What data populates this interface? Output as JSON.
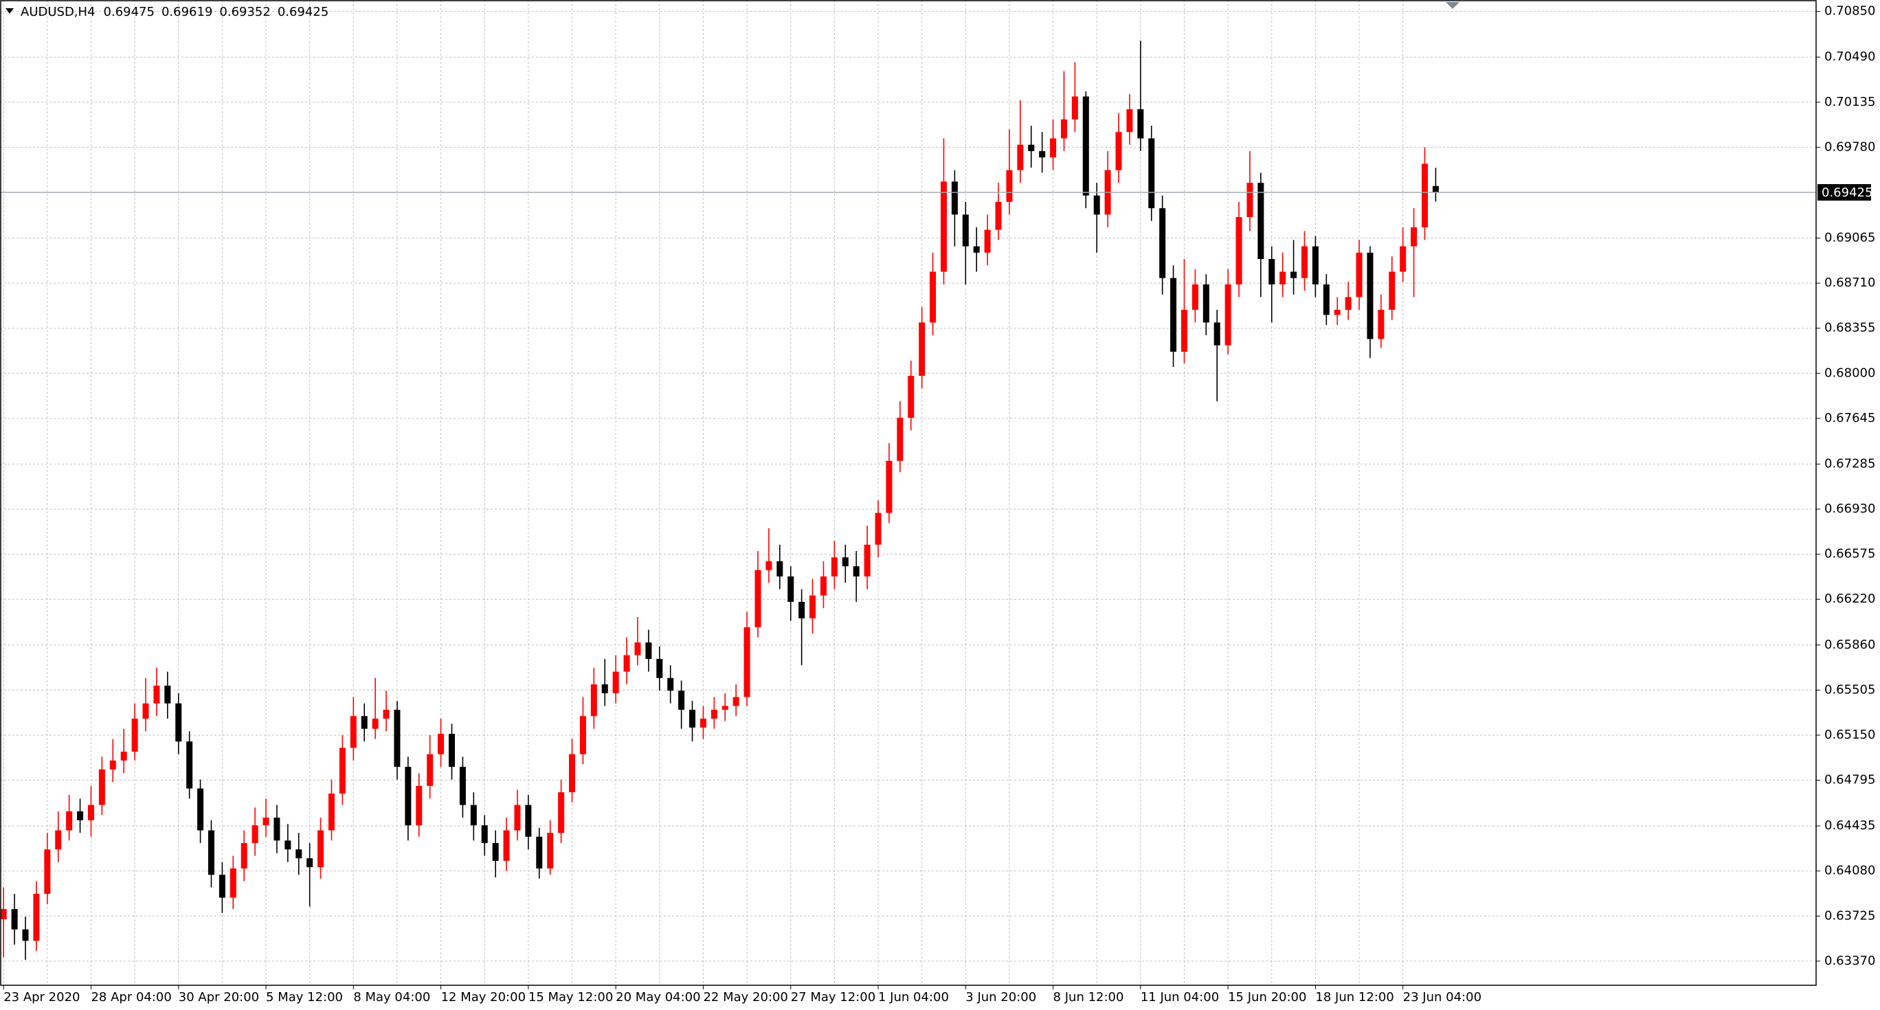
{
  "chart_data": {
    "type": "candlestick",
    "header": {
      "symbol": "AUDUSD,H4",
      "open": 0.69475,
      "high": 0.69619,
      "low": 0.69352,
      "close": 0.69425
    },
    "up_color": "#ff0000",
    "down_color": "#000000",
    "grid": true,
    "price_line": 0.69425,
    "ylim": [
      0.6318,
      0.7094
    ],
    "yticks": [
      {
        "value": 0.7085,
        "label": "0.70850"
      },
      {
        "value": 0.7049,
        "label": "0.70490"
      },
      0.70135,
      {
        "value": 0.6978,
        "label": "0.69780"
      },
      0.69065,
      {
        "value": 0.6871,
        "label": "0.68710"
      },
      0.68355,
      {
        "value": 0.68,
        "label": "0.68000"
      },
      0.67645,
      0.67285,
      {
        "value": 0.6693,
        "label": "0.66930"
      },
      0.66575,
      {
        "value": 0.6622,
        "label": "0.66220"
      },
      {
        "value": 0.6586,
        "label": "0.65860"
      },
      0.65505,
      {
        "value": 0.6515,
        "label": "0.65150"
      },
      0.64795,
      0.64435,
      {
        "value": 0.6408,
        "label": "0.64080"
      },
      0.63725,
      {
        "value": 0.6337,
        "label": "0.63370"
      }
    ],
    "categories": [
      "23 Apr 2020",
      null,
      null,
      null,
      null,
      null,
      null,
      null,
      "28 Apr 04:00",
      null,
      null,
      null,
      null,
      null,
      null,
      null,
      "30 Apr 20:00",
      null,
      null,
      null,
      null,
      null,
      null,
      null,
      "5 May 12:00",
      null,
      null,
      null,
      null,
      null,
      null,
      null,
      "8 May 04:00",
      null,
      null,
      null,
      null,
      null,
      null,
      null,
      "12 May 20:00",
      null,
      null,
      null,
      null,
      null,
      null,
      null,
      "15 May 12:00",
      null,
      null,
      null,
      null,
      null,
      null,
      null,
      "20 May 04:00",
      null,
      null,
      null,
      null,
      null,
      null,
      null,
      "22 May 20:00",
      null,
      null,
      null,
      null,
      null,
      null,
      null,
      "27 May 12:00",
      null,
      null,
      null,
      null,
      null,
      null,
      null,
      "1 Jun 04:00",
      null,
      null,
      null,
      null,
      null,
      null,
      null,
      "3 Jun 20:00",
      null,
      null,
      null,
      null,
      null,
      null,
      null,
      "8 Jun 12:00",
      null,
      null,
      null,
      null,
      null,
      null,
      null,
      "11 Jun 04:00",
      null,
      null,
      null,
      null,
      null,
      null,
      null,
      "15 Jun 20:00",
      null,
      null,
      null,
      null,
      null,
      null,
      null,
      "18 Jun 12:00",
      null,
      null,
      null,
      null,
      null,
      null,
      null,
      "23 Jun 04:00",
      null,
      null,
      null
    ],
    "open": [
      0.637,
      0.6378,
      0.6362,
      0.6353,
      0.639,
      0.6425,
      0.644,
      0.6455,
      0.6448,
      0.646,
      0.6488,
      0.6495,
      0.6502,
      0.6528,
      0.654,
      0.6554,
      0.654,
      0.651,
      0.6473,
      0.644,
      0.6405,
      0.6387,
      0.641,
      0.643,
      0.6444,
      0.645,
      0.6432,
      0.6425,
      0.6418,
      0.6411,
      0.644,
      0.6469,
      0.6505,
      0.653,
      0.652,
      0.6528,
      0.6535,
      0.649,
      0.6444,
      0.6475,
      0.65,
      0.6516,
      0.649,
      0.646,
      0.6444,
      0.643,
      0.6416,
      0.644,
      0.646,
      0.6435,
      0.641,
      0.6438,
      0.647,
      0.65,
      0.653,
      0.6555,
      0.6548,
      0.6565,
      0.6578,
      0.6588,
      0.6575,
      0.656,
      0.655,
      0.6535,
      0.6521,
      0.6528,
      0.6535,
      0.6538,
      0.6545,
      0.66,
      0.6645,
      0.6652,
      0.664,
      0.662,
      0.6607,
      0.6625,
      0.664,
      0.6655,
      0.6648,
      0.664,
      0.6665,
      0.669,
      0.6731,
      0.6765,
      0.6798,
      0.684,
      0.688,
      0.6951,
      0.6925,
      0.69,
      0.6895,
      0.6913,
      0.6935,
      0.696,
      0.698,
      0.6975,
      0.697,
      0.6985,
      0.7,
      0.7018,
      0.694,
      0.6925,
      0.696,
      0.699,
      0.7008,
      0.6985,
      0.693,
      0.6875,
      0.6817,
      0.685,
      0.687,
      0.684,
      0.6822,
      0.687,
      0.6923,
      0.695,
      0.689,
      0.687,
      0.688,
      0.6875,
      0.69,
      0.687,
      0.6846,
      0.685,
      0.686,
      0.6895,
      0.6827,
      0.685,
      0.688,
      0.69,
      0.6915,
      0.69475
    ],
    "high": [
      0.6395,
      0.639,
      0.6372,
      0.64,
      0.6438,
      0.6455,
      0.6468,
      0.6465,
      0.6475,
      0.6498,
      0.6512,
      0.652,
      0.654,
      0.656,
      0.6568,
      0.6565,
      0.6548,
      0.6518,
      0.648,
      0.6448,
      0.6415,
      0.642,
      0.644,
      0.6458,
      0.6465,
      0.646,
      0.6445,
      0.6438,
      0.643,
      0.645,
      0.648,
      0.6515,
      0.6545,
      0.654,
      0.656,
      0.655,
      0.6542,
      0.6498,
      0.6485,
      0.6515,
      0.6528,
      0.6524,
      0.6498,
      0.647,
      0.6452,
      0.644,
      0.645,
      0.6472,
      0.6468,
      0.6442,
      0.6448,
      0.648,
      0.6512,
      0.6545,
      0.6568,
      0.6575,
      0.6578,
      0.6592,
      0.6608,
      0.6598,
      0.6585,
      0.657,
      0.6558,
      0.6542,
      0.6538,
      0.6545,
      0.6548,
      0.6555,
      0.6612,
      0.666,
      0.6678,
      0.6665,
      0.6648,
      0.663,
      0.6638,
      0.6652,
      0.6668,
      0.6665,
      0.666,
      0.668,
      0.67,
      0.6745,
      0.6778,
      0.681,
      0.6852,
      0.6895,
      0.6985,
      0.696,
      0.6935,
      0.6915,
      0.6925,
      0.695,
      0.6992,
      0.7015,
      0.6995,
      0.699,
      0.7,
      0.7038,
      0.7045,
      0.7022,
      0.695,
      0.6975,
      0.7005,
      0.702,
      0.7062,
      0.6995,
      0.694,
      0.6885,
      0.689,
      0.6882,
      0.6878,
      0.685,
      0.6882,
      0.6935,
      0.6975,
      0.6958,
      0.69,
      0.6895,
      0.6905,
      0.6912,
      0.6908,
      0.6878,
      0.686,
      0.6872,
      0.6905,
      0.69,
      0.6862,
      0.6892,
      0.6915,
      0.693,
      0.6978,
      0.69619
    ],
    "low": [
      0.634,
      0.635,
      0.6338,
      0.6345,
      0.6382,
      0.6415,
      0.6432,
      0.6438,
      0.6435,
      0.6452,
      0.6478,
      0.6485,
      0.6495,
      0.6518,
      0.653,
      0.6528,
      0.65,
      0.6465,
      0.643,
      0.6395,
      0.6375,
      0.6378,
      0.64,
      0.642,
      0.6435,
      0.6422,
      0.6415,
      0.6405,
      0.638,
      0.6402,
      0.6432,
      0.646,
      0.6495,
      0.651,
      0.6512,
      0.6518,
      0.648,
      0.6432,
      0.6435,
      0.6465,
      0.649,
      0.648,
      0.645,
      0.6432,
      0.642,
      0.6403,
      0.6408,
      0.6432,
      0.6425,
      0.6402,
      0.6405,
      0.643,
      0.6462,
      0.6492,
      0.652,
      0.6538,
      0.654,
      0.6555,
      0.657,
      0.6565,
      0.655,
      0.654,
      0.652,
      0.651,
      0.6512,
      0.652,
      0.6526,
      0.653,
      0.6538,
      0.6592,
      0.6635,
      0.663,
      0.6605,
      0.657,
      0.6595,
      0.6615,
      0.663,
      0.6635,
      0.662,
      0.663,
      0.6655,
      0.6682,
      0.6722,
      0.6755,
      0.6788,
      0.683,
      0.687,
      0.69,
      0.687,
      0.688,
      0.6885,
      0.6905,
      0.6925,
      0.695,
      0.6962,
      0.6958,
      0.696,
      0.6975,
      0.699,
      0.693,
      0.6895,
      0.6915,
      0.695,
      0.698,
      0.6975,
      0.692,
      0.6862,
      0.6805,
      0.6808,
      0.684,
      0.683,
      0.6778,
      0.6815,
      0.686,
      0.6912,
      0.686,
      0.684,
      0.686,
      0.6862,
      0.6865,
      0.686,
      0.6838,
      0.6838,
      0.6842,
      0.685,
      0.6812,
      0.682,
      0.6842,
      0.6872,
      0.686,
      0.6905,
      0.69352
    ],
    "close": [
      0.6378,
      0.6362,
      0.6353,
      0.639,
      0.6425,
      0.644,
      0.6455,
      0.6448,
      0.646,
      0.6488,
      0.6495,
      0.6502,
      0.6528,
      0.654,
      0.6554,
      0.654,
      0.651,
      0.6473,
      0.644,
      0.6405,
      0.6387,
      0.641,
      0.643,
      0.6444,
      0.645,
      0.6432,
      0.6425,
      0.6418,
      0.6411,
      0.644,
      0.6469,
      0.6505,
      0.653,
      0.652,
      0.6528,
      0.6535,
      0.649,
      0.6444,
      0.6475,
      0.65,
      0.6516,
      0.649,
      0.646,
      0.6444,
      0.643,
      0.6416,
      0.644,
      0.646,
      0.6435,
      0.641,
      0.6438,
      0.647,
      0.65,
      0.653,
      0.6555,
      0.6548,
      0.6565,
      0.6578,
      0.6588,
      0.6575,
      0.656,
      0.655,
      0.6535,
      0.6521,
      0.6528,
      0.6535,
      0.6538,
      0.6545,
      0.66,
      0.6645,
      0.6652,
      0.664,
      0.662,
      0.6607,
      0.6625,
      0.664,
      0.6655,
      0.6648,
      0.664,
      0.6665,
      0.669,
      0.6731,
      0.6765,
      0.6798,
      0.684,
      0.688,
      0.6951,
      0.6925,
      0.69,
      0.6895,
      0.6913,
      0.6935,
      0.696,
      0.698,
      0.6975,
      0.697,
      0.6985,
      0.7,
      0.7018,
      0.694,
      0.6925,
      0.696,
      0.699,
      0.7008,
      0.6985,
      0.693,
      0.6875,
      0.6817,
      0.685,
      0.687,
      0.684,
      0.6822,
      0.687,
      0.6923,
      0.695,
      0.689,
      0.687,
      0.688,
      0.6875,
      0.69,
      0.687,
      0.6846,
      0.685,
      0.686,
      0.6895,
      0.6827,
      0.685,
      0.688,
      0.69,
      0.6915,
      0.6965,
      0.69425
    ]
  }
}
